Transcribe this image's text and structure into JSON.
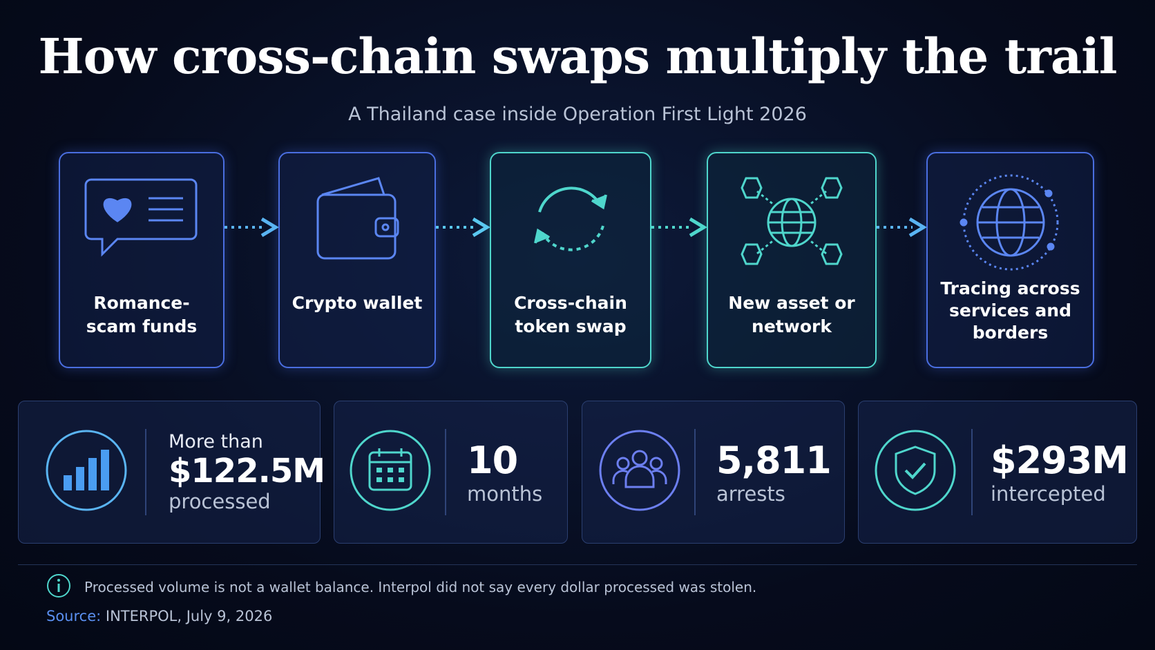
{
  "header": {
    "title": "How cross-chain swaps multiply the trail",
    "subtitle": "A Thailand case inside Operation First Light 2026"
  },
  "steps": [
    {
      "label": "Romance-scam funds"
    },
    {
      "label": "Crypto wallet"
    },
    {
      "label": "Cross-chain token swap"
    },
    {
      "label": "New asset or network"
    },
    {
      "label": "Tracing across services and borders"
    }
  ],
  "stats": [
    {
      "prefix": "More than",
      "value": "$122.5M",
      "caption": "processed"
    },
    {
      "value": "10",
      "caption": "months"
    },
    {
      "value": "5,811",
      "caption": "arrests"
    },
    {
      "value": "$293M",
      "caption": "intercepted"
    }
  ],
  "note": "Processed volume is not a wallet balance. Interpol did not say every dollar processed was stolen.",
  "source": {
    "label": "Source:",
    "text": "INTERPOL, July 9, 2026"
  }
}
